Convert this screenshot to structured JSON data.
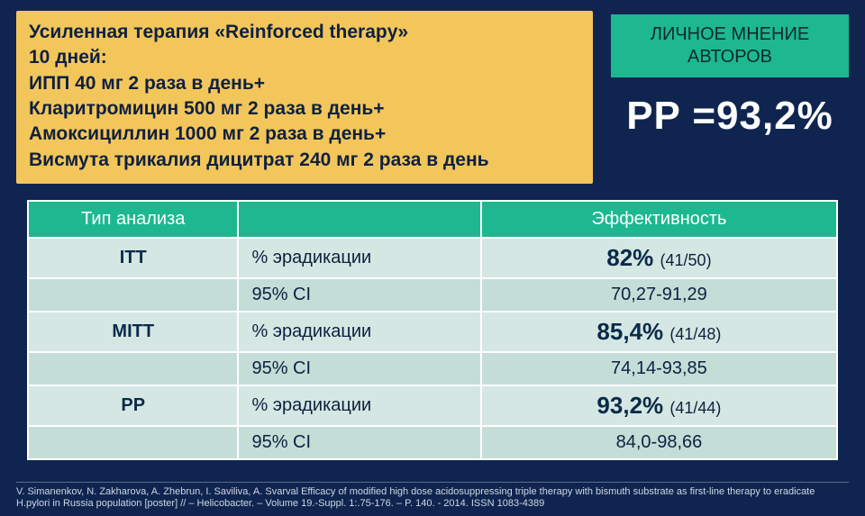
{
  "therapy_box": {
    "line1": "Усиленная терапия «Reinforced therapy»",
    "line2": "10 дней:",
    "line3": "ИПП 40 мг 2 раза в день+",
    "line4": "Кларитромицин 500 мг 2 раза в день+",
    "line5": "Амоксициллин 1000 мг 2 раза в день+",
    "line6": "Висмута трикалия дицитрат 240 мг 2 раза в день"
  },
  "opinion_box": {
    "line1": "ЛИЧНОЕ МНЕНИЕ",
    "line2": "АВТОРОВ"
  },
  "pp_stat": "PP =93,2%",
  "table": {
    "header_type": "Тип анализа",
    "header_eff": "Эффективность",
    "header_mid": "",
    "rows": [
      {
        "type": "ITT",
        "metric": "% эрадикации",
        "pct": "82%",
        "count": "(41/50)"
      },
      {
        "type": "",
        "metric": "95% CI",
        "pct": "",
        "count": "70,27-91,29"
      },
      {
        "type": "MITT",
        "metric": "% эрадикации",
        "pct": "85,4%",
        "count": "(41/48)"
      },
      {
        "type": "",
        "metric": "95% CI",
        "pct": "",
        "count": "74,14-93,85"
      },
      {
        "type": "PP",
        "metric": "% эрадикации",
        "pct": "93,2%",
        "count": "(41/44)"
      },
      {
        "type": "",
        "metric": "95% CI",
        "pct": "",
        "count": "84,0-98,66"
      }
    ]
  },
  "citation": "V. Simanenkov, N. Zakharova, A. Zhebrun, I. Saviliva, A. Svarval Efficacy of modified high dose acidosuppressing triple therapy with bismuth substrate as first-line therapy to eradicate H.pylori in Russia population [poster] // – Helicobacter. – Volume 19.-Suppl. 1:.75-176. – P. 140. - 2014. ISSN 1083-4389",
  "colors": {
    "page_bg": "#0f2550",
    "therapy_bg": "#f2c65a",
    "accent_green": "#1db890",
    "cell_odd": "#d4e7e2",
    "cell_even": "#c4ddd7",
    "text_dark": "#102040",
    "white": "#ffffff"
  }
}
